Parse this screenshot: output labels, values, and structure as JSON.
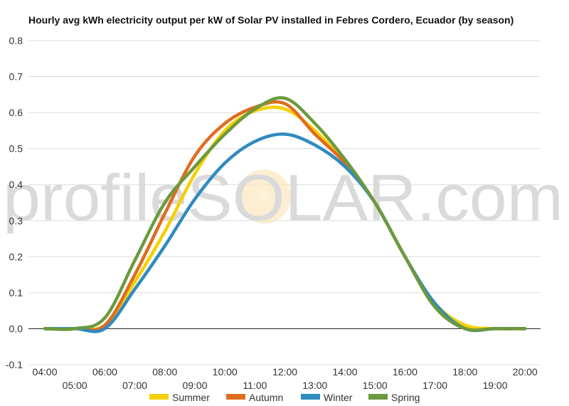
{
  "chart_data": {
    "type": "line",
    "title": "Hourly avg kWh electricity output per kW of Solar PV installed in Febres Cordero, Ecuador (by season)",
    "x": [
      "04:00",
      "05:00",
      "06:00",
      "07:00",
      "08:00",
      "09:00",
      "10:00",
      "11:00",
      "12:00",
      "13:00",
      "14:00",
      "15:00",
      "16:00",
      "17:00",
      "18:00",
      "19:00",
      "20:00"
    ],
    "ylim": [
      -0.1,
      0.8
    ],
    "yticks": [
      "-0.1",
      "0.0",
      "0.1",
      "0.2",
      "0.3",
      "0.4",
      "0.5",
      "0.6",
      "0.7",
      "0.8"
    ],
    "grid": true,
    "legend_position": "bottom",
    "series": [
      {
        "name": "Summer",
        "color": "#f5d000",
        "values": [
          0.0,
          0.0,
          0.01,
          0.13,
          0.27,
          0.43,
          0.55,
          0.605,
          0.61,
          0.55,
          0.46,
          0.35,
          0.2,
          0.07,
          0.01,
          0.0,
          0.0
        ]
      },
      {
        "name": "Autumn",
        "color": "#e06c1f",
        "values": [
          0.0,
          0.0,
          0.01,
          0.15,
          0.32,
          0.48,
          0.57,
          0.615,
          0.625,
          0.54,
          0.46,
          0.35,
          0.2,
          0.06,
          0.0,
          0.0,
          0.0
        ]
      },
      {
        "name": "Winter",
        "color": "#2e8bc0",
        "values": [
          0.0,
          0.0,
          0.0,
          0.11,
          0.23,
          0.36,
          0.46,
          0.52,
          0.54,
          0.51,
          0.45,
          0.35,
          0.2,
          0.07,
          0.0,
          0.0,
          0.0
        ]
      },
      {
        "name": "Spring",
        "color": "#6b9a3e",
        "values": [
          0.0,
          0.0,
          0.03,
          0.19,
          0.35,
          0.45,
          0.54,
          0.61,
          0.64,
          0.57,
          0.47,
          0.35,
          0.2,
          0.06,
          0.0,
          0.0,
          0.0
        ]
      }
    ]
  },
  "watermark": {
    "text": "profileSOLAR.com",
    "color": "#dadada",
    "sun_color": "#fbe9c0"
  }
}
